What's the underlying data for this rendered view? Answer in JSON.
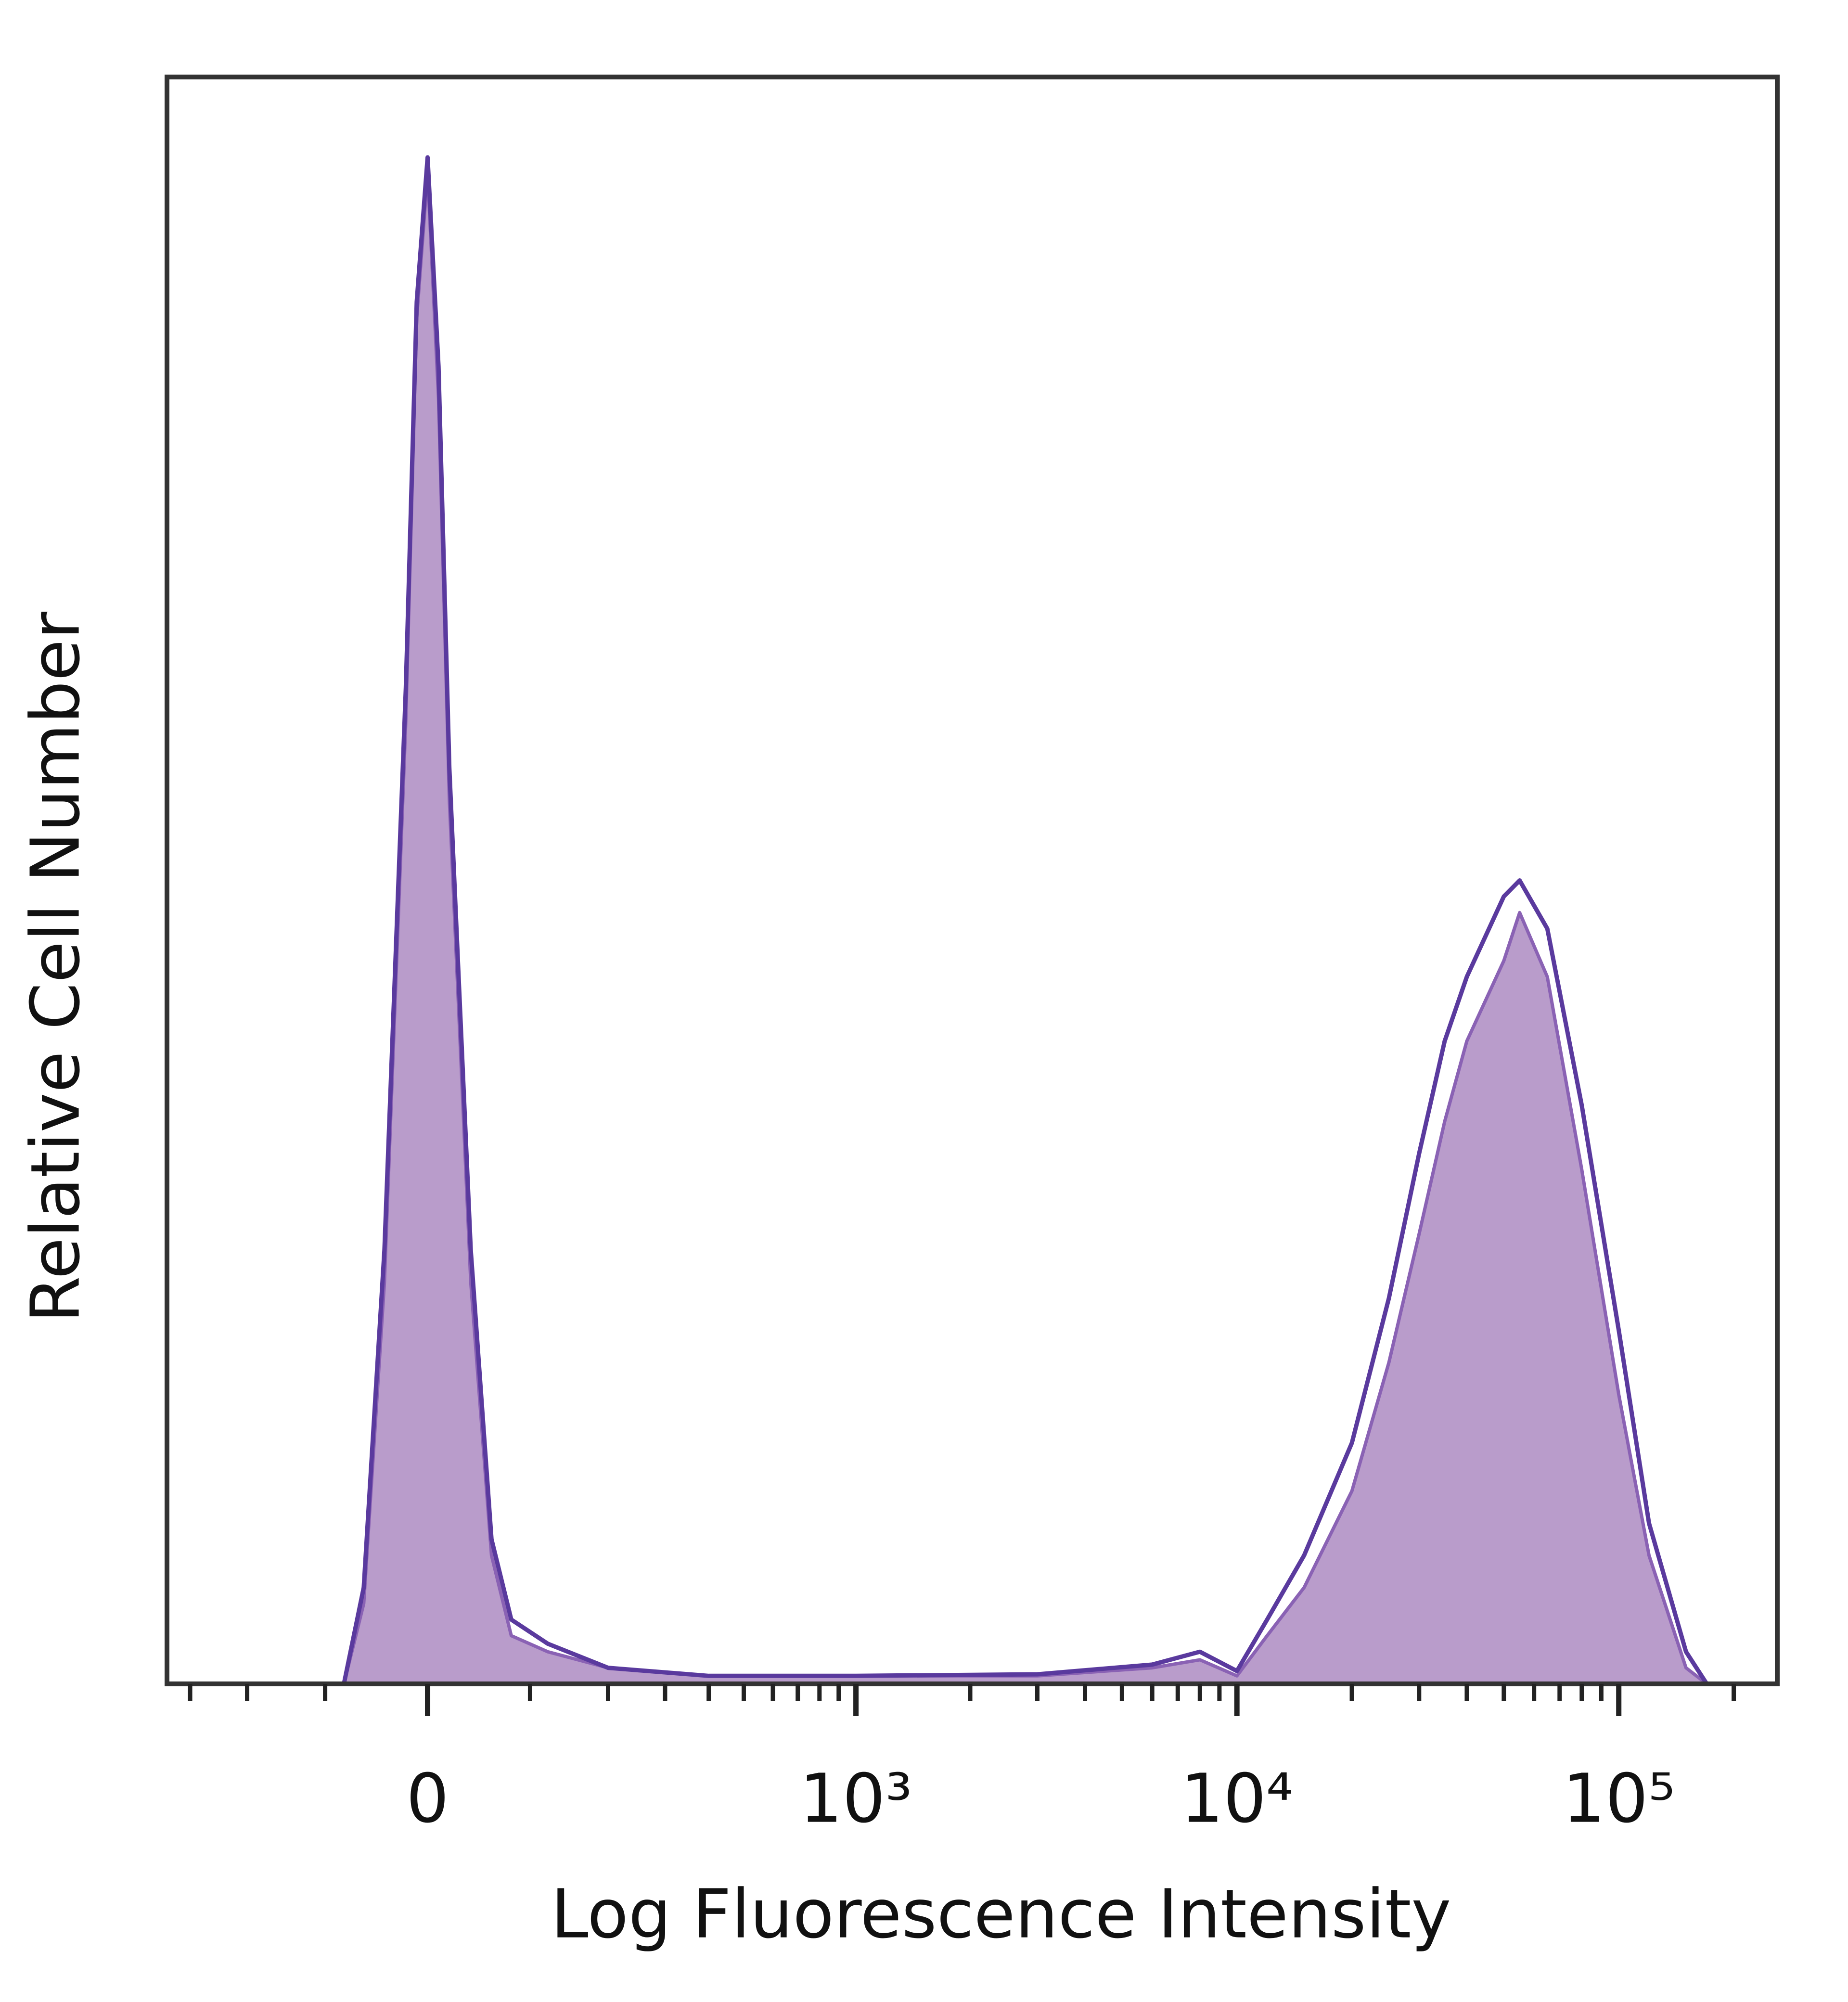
{
  "chart_data": {
    "type": "histogram-overlay",
    "x_label": "Log Fluorescence Intensity",
    "y_label": "Relative Cell Number",
    "xscale": "biexponential",
    "xlim": [
      -350,
      260000
    ],
    "ylim": [
      0,
      100
    ],
    "xticks": [
      {
        "value": 0,
        "label": "0"
      },
      {
        "value": 1000,
        "label": "10³"
      },
      {
        "value": 10000,
        "label": "10⁴"
      },
      {
        "value": 100000,
        "label": "10⁵"
      }
    ],
    "xminorticks": [
      -300,
      -200,
      -100,
      100,
      200,
      300,
      400,
      500,
      600,
      700,
      800,
      900,
      2000,
      3000,
      4000,
      5000,
      6000,
      7000,
      8000,
      9000,
      20000,
      30000,
      40000,
      50000,
      60000,
      70000,
      80000,
      90000,
      200000
    ],
    "x": [
      -80,
      -60,
      -40,
      -20,
      -10,
      0,
      10,
      20,
      40,
      60,
      80,
      120,
      200,
      400,
      1000,
      3000,
      6000,
      8000,
      10000,
      12000,
      15000,
      20000,
      25000,
      30000,
      35000,
      40000,
      50000,
      55000,
      65000,
      80000,
      100000,
      120000,
      150000,
      170000
    ],
    "series": [
      {
        "color": "#b99ccb",
        "edge_color": "#8a62b4",
        "fill": true,
        "values": [
          0,
          5,
          25,
          60,
          85,
          94,
          80,
          55,
          25,
          8,
          3,
          2,
          1,
          0.5,
          0.5,
          0.5,
          1,
          1.5,
          0.5,
          3,
          6,
          12,
          20,
          28,
          35,
          40,
          45,
          48,
          44,
          32,
          18,
          8,
          1,
          0
        ]
      },
      {
        "color": "#5a3a9e",
        "fill": false,
        "values": [
          0,
          6,
          27,
          62,
          86,
          95,
          82,
          57,
          27,
          9,
          4,
          2.5,
          1,
          0.5,
          0.5,
          0.6,
          1.2,
          2,
          0.8,
          4,
          8,
          15,
          24,
          33,
          40,
          44,
          49,
          50,
          47,
          36,
          22,
          10,
          2,
          0
        ]
      }
    ]
  }
}
